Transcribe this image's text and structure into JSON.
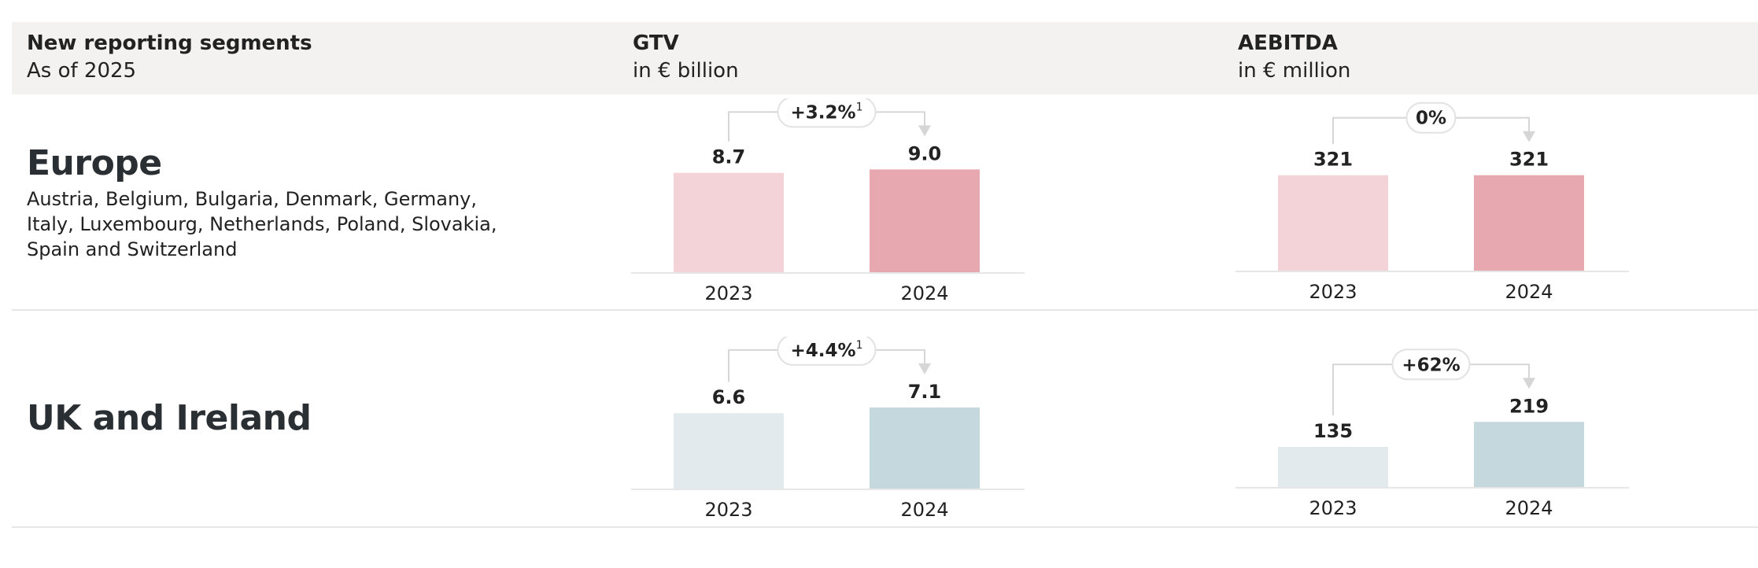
{
  "header": {
    "segments_title": "New reporting segments",
    "segments_sub": "As of 2025",
    "gtv_title": "GTV",
    "gtv_sub": "in € billion",
    "aebitda_title": "AEBITDA",
    "aebitda_sub": "in € million"
  },
  "segments": [
    {
      "name": "Europe",
      "countries": "Austria, Belgium, Bulgaria, Denmark, Germany, Italy, Luxembourg, Netherlands, Poland, Slovakia, Spain and Switzerland"
    },
    {
      "name": "UK and Ireland",
      "countries": ""
    }
  ],
  "colors": {
    "europe_2023": "#f3d3d8",
    "europe_2024": "#e7a8b0",
    "uk_2023": "#e2eaed",
    "uk_2024": "#c5d8dd",
    "arrow": "#d6d6d6",
    "baseline": "#e6e6e6"
  },
  "chart_data": [
    {
      "type": "bar",
      "segment": "Europe",
      "metric": "GTV",
      "categories": [
        "2023",
        "2024"
      ],
      "values": [
        8.7,
        9.0
      ],
      "value_labels": [
        "8.7",
        "9.0"
      ],
      "change_label": "+3.2%",
      "footnote": "1",
      "ylim": [
        0,
        10
      ]
    },
    {
      "type": "bar",
      "segment": "Europe",
      "metric": "AEBITDA",
      "categories": [
        "2023",
        "2024"
      ],
      "values": [
        321,
        321
      ],
      "value_labels": [
        "321",
        "321"
      ],
      "change_label": "0%",
      "footnote": "",
      "ylim": [
        0,
        370
      ]
    },
    {
      "type": "bar",
      "segment": "UK and Ireland",
      "metric": "GTV",
      "categories": [
        "2023",
        "2024"
      ],
      "values": [
        6.6,
        7.1
      ],
      "value_labels": [
        "6.6",
        "7.1"
      ],
      "change_label": "+4.4%",
      "footnote": "1",
      "ylim": [
        0,
        10
      ]
    },
    {
      "type": "bar",
      "segment": "UK and Ireland",
      "metric": "AEBITDA",
      "categories": [
        "2023",
        "2024"
      ],
      "values": [
        135,
        219
      ],
      "value_labels": [
        "135",
        "219"
      ],
      "change_label": "+62%",
      "footnote": "",
      "ylim": [
        0,
        370
      ]
    }
  ]
}
